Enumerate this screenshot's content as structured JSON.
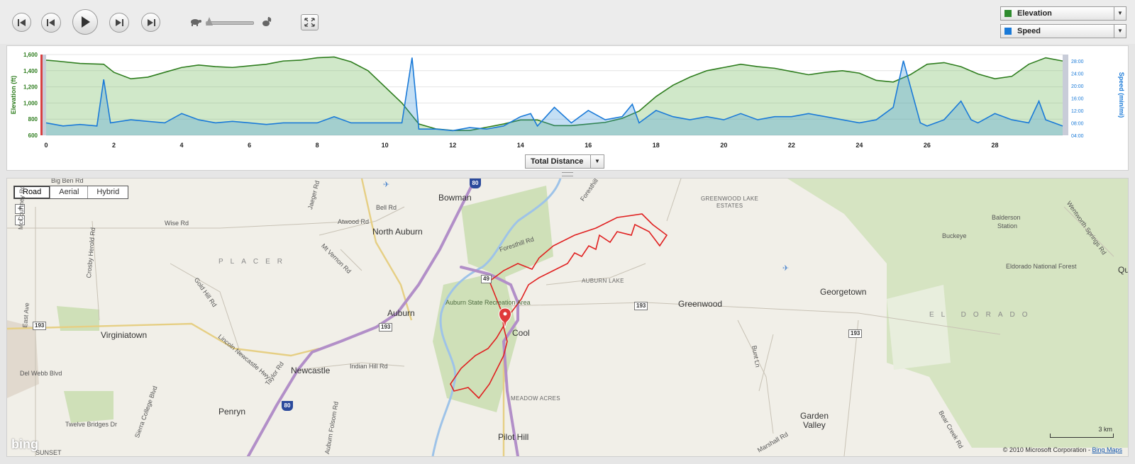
{
  "player": {
    "buttons": [
      "skip-back",
      "step-back",
      "play",
      "step-forward",
      "skip-forward"
    ]
  },
  "series_dropdowns": [
    {
      "label": "Elevation",
      "color": "#2e8b2e"
    },
    {
      "label": "Speed",
      "color": "#1a7ad8"
    }
  ],
  "x_axis_dropdown": {
    "label": "Total Distance"
  },
  "chart_data": {
    "type": "area",
    "x_ticks": [
      "0",
      "2",
      "4",
      "6",
      "8",
      "10",
      "12",
      "14",
      "16",
      "18",
      "20",
      "22",
      "24",
      "26",
      "28"
    ],
    "xlim": [
      0,
      30
    ],
    "left_axis": {
      "label": "Elevation (ft)",
      "ticks": [
        "600",
        "800",
        "1,000",
        "1,200",
        "1,400",
        "1,600"
      ],
      "range": [
        600,
        1600
      ]
    },
    "right_axis": {
      "label": "Speed (min/mi)",
      "ticks": [
        "04:00",
        "08:00",
        "12:00",
        "16:00",
        "20:00",
        "24:00",
        "28:00"
      ],
      "range": [
        4,
        30
      ]
    },
    "series": [
      {
        "name": "Elevation",
        "axis": "left",
        "color": "#2e7d1e",
        "x": [
          0,
          0.3,
          1,
          1.7,
          2,
          2.5,
          3,
          3.5,
          4,
          4.5,
          5,
          5.5,
          6,
          6.5,
          7,
          7.5,
          8,
          8.5,
          9,
          9.5,
          10,
          10.5,
          11,
          11.5,
          12,
          12.5,
          13,
          13.5,
          14,
          14.5,
          15,
          15.5,
          16,
          16.5,
          17,
          17.5,
          18,
          18.5,
          19,
          19.5,
          20,
          20.5,
          21,
          21.5,
          22,
          22.5,
          23,
          23.5,
          24,
          24.5,
          25,
          25.5,
          26,
          26.5,
          27,
          27.5,
          28,
          28.5,
          29,
          29.5,
          30
        ],
        "y": [
          1530,
          1520,
          1490,
          1480,
          1380,
          1300,
          1320,
          1380,
          1440,
          1470,
          1450,
          1440,
          1460,
          1480,
          1520,
          1530,
          1560,
          1570,
          1510,
          1400,
          1200,
          1000,
          740,
          680,
          660,
          660,
          700,
          740,
          790,
          790,
          720,
          720,
          740,
          760,
          810,
          900,
          1080,
          1220,
          1320,
          1400,
          1440,
          1480,
          1450,
          1430,
          1390,
          1350,
          1380,
          1400,
          1370,
          1280,
          1260,
          1350,
          1480,
          1500,
          1450,
          1360,
          1300,
          1330,
          1480,
          1560,
          1520
        ]
      },
      {
        "name": "Speed",
        "axis": "right",
        "color": "#1a7ad8",
        "x": [
          0,
          0.5,
          1,
          1.5,
          1.7,
          1.9,
          2.5,
          3,
          3.5,
          4,
          4.5,
          5,
          5.5,
          6,
          6.5,
          7,
          7.5,
          8,
          8.5,
          9,
          9.5,
          10,
          10.5,
          10.8,
          11,
          11.5,
          12,
          12.5,
          13,
          13.5,
          14,
          14.3,
          14.5,
          15,
          15.5,
          16,
          16.5,
          17,
          17.3,
          17.5,
          18,
          18.5,
          19,
          19.5,
          20,
          20.5,
          21,
          21.5,
          22,
          22.5,
          23,
          23.5,
          24,
          24.5,
          25,
          25.3,
          25.5,
          25.8,
          26,
          26.5,
          27,
          27.3,
          27.5,
          28,
          28.5,
          29,
          29.3,
          29.5,
          30
        ],
        "y": [
          8,
          7,
          7.5,
          7,
          22,
          8,
          9,
          8.5,
          8,
          11,
          9,
          8,
          8.5,
          8,
          7.5,
          8,
          8,
          8,
          10,
          8,
          8,
          8,
          8,
          29,
          6,
          6,
          5.5,
          6.5,
          6,
          7,
          10,
          11,
          7,
          13,
          8,
          12,
          9,
          10,
          14,
          8,
          12,
          10,
          9,
          10,
          9,
          11,
          9,
          10,
          10,
          11,
          10,
          9,
          8,
          9,
          13,
          28,
          20,
          8,
          7,
          9,
          15,
          9,
          8,
          11,
          9,
          8,
          15,
          9,
          7
        ]
      }
    ]
  },
  "map": {
    "tabs": [
      "Road",
      "Aerial",
      "Hybrid"
    ],
    "zoom_in": "+",
    "zoom_out": "−",
    "labels": {
      "big_ben": "Big Ben Rd",
      "bowman": "Bowman",
      "bell": "Bell Rd",
      "atwood": "Atwood Rd",
      "north_auburn": "North Auburn",
      "wise": "Wise Rd",
      "mccourtney": "McCourtney Rd",
      "crosby": "Crosby Herold Rd",
      "placer": "PLACER",
      "mt_vernon": "Mt Vernon Rd",
      "jaeger": "Jaeger Rd",
      "foresthill": "Foresthill Rd",
      "foresthill2": "Foresthill Rd",
      "auburn": "Auburn",
      "park": "Auburn State Recreation Area",
      "gold_hill": "Gold Hill Rd",
      "east_ave": "East Ave",
      "virginiatown": "Virginiatown",
      "lincoln": "Lincoln Newcastle Hwy",
      "newcastle": "Newcastle",
      "indian_hill": "Indian Hill Rd",
      "taylor": "Taylor Rd",
      "del_webb": "Del Webb Blvd",
      "penryn": "Penryn",
      "sierra_college": "Sierra College Blvd",
      "twelve_bridges": "Twelve Bridges Dr",
      "folsom": "Auburn Folsom Rd",
      "meadow": "MEADOW ACRES",
      "pilot_hill": "Pilot Hill",
      "cool": "Cool",
      "auburn_lake": "AUBURN LAKE",
      "greenwood": "Greenwood",
      "greenwood_lake": "GREENWOOD LAKE",
      "estates": "ESTATES",
      "georgetown": "Georgetown",
      "buckeye": "Buckeye",
      "balderson": "Balderson",
      "station": "Station",
      "eldorado_nf": "Eldorado National Forest",
      "el_dorado": "EL DORADO",
      "garden": "Garden",
      "valley": "Valley",
      "marshall": "Marshall Rd",
      "bear_creek": "Bear Creek Rd",
      "wentworth": "Wentworth Springs Rd",
      "bunt": "Bunt Ln",
      "quin": "Qui",
      "sunset": "SUNSET",
      "hwy193a": "193",
      "hwy193b": "193",
      "hwy193c": "193",
      "hwy193d": "193",
      "hwy49": "49",
      "i80a": "80",
      "i80b": "80"
    },
    "scale": "3 km",
    "copyright": "© 2010 Microsoft Corporation - ",
    "copyright_link": "Bing Maps",
    "logo": "bing"
  }
}
